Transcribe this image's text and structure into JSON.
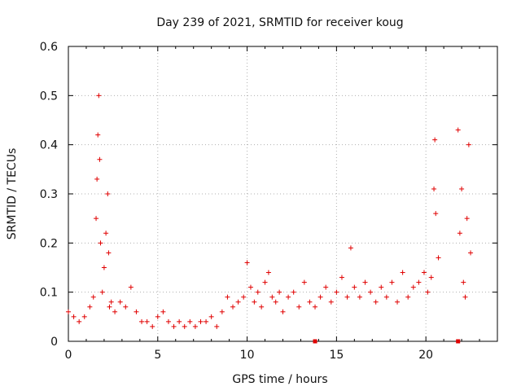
{
  "chart_data": {
    "type": "scatter",
    "title": "Day 239 of 2021, SRMTID for receiver koug",
    "xlabel": "GPS time / hours",
    "ylabel": "SRMTID / TECUs",
    "xlim": [
      0,
      24
    ],
    "ylim": [
      0,
      0.6
    ],
    "x_ticks": [
      0,
      5,
      10,
      15,
      20
    ],
    "y_ticks": [
      0,
      0.1,
      0.2,
      0.3,
      0.4,
      0.5,
      0.6
    ],
    "x_tick_labels": [
      "0",
      "5",
      "10",
      "15",
      "20"
    ],
    "y_tick_labels": [
      "0",
      "0.1",
      "0.2",
      "0.3",
      "0.4",
      "0.5",
      "0.6"
    ],
    "grid": true,
    "marker": "+",
    "color": "#e00000",
    "series": [
      {
        "name": "SRMTID",
        "x": [
          0.0,
          0.3,
          0.6,
          0.9,
          1.2,
          1.4,
          1.55,
          1.6,
          1.65,
          1.7,
          1.75,
          1.8,
          1.9,
          2.0,
          2.1,
          2.2,
          2.25,
          2.3,
          2.4,
          2.6,
          2.9,
          3.2,
          3.5,
          3.8,
          4.1,
          4.4,
          4.7,
          5.0,
          5.3,
          5.6,
          5.9,
          6.2,
          6.5,
          6.8,
          7.1,
          7.4,
          7.7,
          8.0,
          8.3,
          8.6,
          8.9,
          9.2,
          9.5,
          9.8,
          10.0,
          10.2,
          10.4,
          10.6,
          10.8,
          11.0,
          11.2,
          11.4,
          11.6,
          11.8,
          12.0,
          12.3,
          12.6,
          12.9,
          13.2,
          13.5,
          13.8,
          14.1,
          14.4,
          14.7,
          15.0,
          15.3,
          15.6,
          15.8,
          16.0,
          16.3,
          16.6,
          16.9,
          17.2,
          17.5,
          17.8,
          18.1,
          18.4,
          18.7,
          19.0,
          19.3,
          19.6,
          19.9,
          20.1,
          20.3,
          20.45,
          20.5,
          20.55,
          20.7,
          21.8,
          21.9,
          22.0,
          22.1,
          22.2,
          22.3,
          22.4,
          22.5
        ],
        "y": [
          0.06,
          0.05,
          0.04,
          0.05,
          0.07,
          0.09,
          0.25,
          0.33,
          0.42,
          0.5,
          0.37,
          0.2,
          0.1,
          0.15,
          0.22,
          0.3,
          0.18,
          0.07,
          0.08,
          0.06,
          0.08,
          0.07,
          0.11,
          0.06,
          0.04,
          0.04,
          0.03,
          0.05,
          0.06,
          0.04,
          0.03,
          0.04,
          0.03,
          0.04,
          0.03,
          0.04,
          0.04,
          0.05,
          0.03,
          0.06,
          0.09,
          0.07,
          0.08,
          0.09,
          0.16,
          0.11,
          0.08,
          0.1,
          0.07,
          0.12,
          0.14,
          0.09,
          0.08,
          0.1,
          0.06,
          0.09,
          0.1,
          0.07,
          0.12,
          0.08,
          0.07,
          0.09,
          0.11,
          0.08,
          0.1,
          0.13,
          0.09,
          0.19,
          0.11,
          0.09,
          0.12,
          0.1,
          0.08,
          0.11,
          0.09,
          0.12,
          0.08,
          0.14,
          0.09,
          0.11,
          0.12,
          0.14,
          0.1,
          0.13,
          0.31,
          0.41,
          0.26,
          0.17,
          0.43,
          0.22,
          0.31,
          0.12,
          0.09,
          0.25,
          0.4,
          0.18
        ],
        "zero_markers_x": [
          13.8,
          21.8
        ]
      }
    ]
  }
}
